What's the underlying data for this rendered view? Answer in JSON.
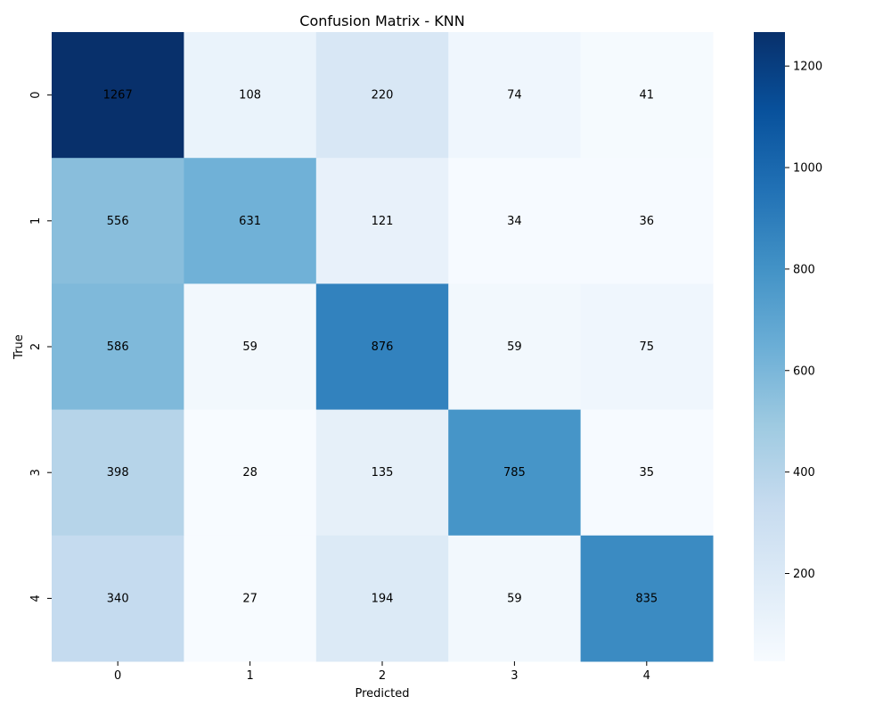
{
  "chart_data": {
    "type": "heatmap",
    "title": "Confusion Matrix - KNN",
    "xlabel": "Predicted",
    "ylabel": "True",
    "x_categories": [
      "0",
      "1",
      "2",
      "3",
      "4"
    ],
    "y_categories": [
      "0",
      "1",
      "2",
      "3",
      "4"
    ],
    "values": [
      [
        1267,
        108,
        220,
        74,
        41
      ],
      [
        556,
        631,
        121,
        34,
        36
      ],
      [
        586,
        59,
        876,
        59,
        75
      ],
      [
        398,
        28,
        135,
        785,
        35
      ],
      [
        340,
        27,
        194,
        59,
        835
      ]
    ],
    "colormap": "Blues",
    "colormap_stops": [
      "#f7fbff",
      "#deebf7",
      "#c6dbef",
      "#9ecae1",
      "#6baed6",
      "#4292c6",
      "#2171b5",
      "#08519c",
      "#08306b"
    ],
    "value_range": [
      27,
      1267
    ],
    "colorbar_ticks": [
      "200",
      "400",
      "600",
      "800",
      "1000",
      "1200"
    ],
    "annotation_colors": {
      "dark": "#262626",
      "light": "#ffffff"
    }
  }
}
